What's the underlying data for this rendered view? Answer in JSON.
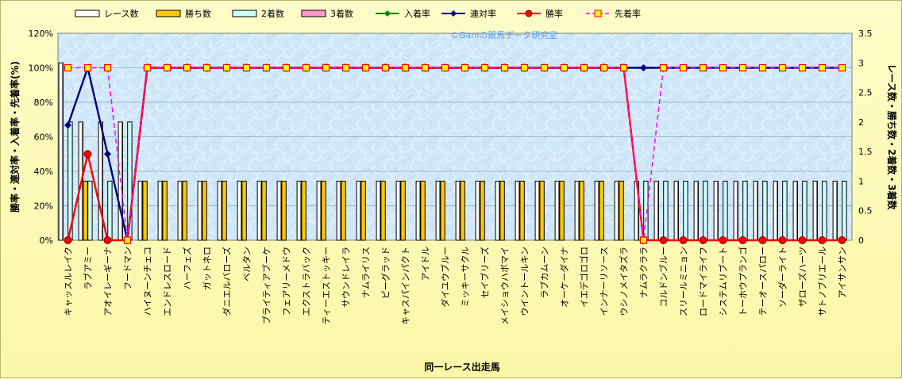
{
  "chart_data": {
    "type": "bar+line",
    "watermark": "©Ganiの競馬データ研究室",
    "xlabel": "同一レース出走馬",
    "ylabel_left": "勝率・連対率・入着率・先着率(%)",
    "ylabel_right": "レース数・勝ち数・2着数・3着数",
    "ylim_left": [
      0,
      120
    ],
    "ylim_right": [
      0,
      3.5
    ],
    "yticks_left": [
      "0%",
      "20%",
      "40%",
      "60%",
      "80%",
      "100%",
      "120%"
    ],
    "yticks_right": [
      "0",
      "0.5",
      "1",
      "1.5",
      "2",
      "2.5",
      "3",
      "3.5"
    ],
    "categories": [
      "キャッスルレイク",
      "ラブアミー",
      "アオイレーギーナ",
      "フードマン",
      "ハイヌーンチェコ",
      "エンドレスロード",
      "ハーフェズ",
      "ガットネロ",
      "ダニエルバローズ",
      "ベルタン",
      "ブライティアブーケ",
      "フェアリーメドウ",
      "エクストラバック",
      "ティーエストッキー",
      "サウンドレイラ",
      "ナムライリス",
      "ピーグラッド",
      "キャスパインパクト",
      "アイドル",
      "ダイユウブルー",
      "ミッキーサクル",
      "セイブリーズ",
      "メイショウハボマイ",
      "ウイントールキン",
      "ラブカムーン",
      "オーケーダイナ",
      "イエデゴロゴロ",
      "インナーリソース",
      "ウシノメイタズラ",
      "ナムラクララ",
      "コルドンブルー",
      "スリールミニョン",
      "ロードマイライフ",
      "システムリブート",
      "トーホウプランゴ",
      "テーオースパロー",
      "ソーダーライト",
      "ザローズハーツ",
      "サトノブリエール",
      "アイサンサン"
    ],
    "series": [
      {
        "name": "レース数",
        "values": [
          3,
          2,
          2,
          2,
          1,
          1,
          1,
          1,
          1,
          1,
          1,
          1,
          1,
          1,
          1,
          1,
          1,
          1,
          1,
          1,
          1,
          1,
          1,
          1,
          1,
          1,
          1,
          1,
          1,
          1,
          1,
          1,
          1,
          1,
          1,
          1,
          1,
          1,
          1,
          1
        ],
        "color": "#ffffff"
      },
      {
        "name": "勝ち数",
        "values": [
          0,
          1,
          0,
          0,
          1,
          1,
          1,
          1,
          1,
          1,
          1,
          1,
          1,
          1,
          1,
          1,
          1,
          1,
          1,
          1,
          1,
          1,
          1,
          1,
          1,
          1,
          1,
          1,
          1,
          0,
          0,
          0,
          0,
          0,
          0,
          0,
          0,
          0,
          0,
          0
        ],
        "color": "#ffc800"
      },
      {
        "name": "2着数",
        "values": [
          2,
          1,
          1,
          2,
          0,
          0,
          0,
          0,
          0,
          0,
          0,
          0,
          0,
          0,
          0,
          0,
          0,
          0,
          0,
          0,
          0,
          0,
          0,
          0,
          0,
          0,
          0,
          0,
          0,
          1,
          1,
          1,
          1,
          1,
          1,
          1,
          1,
          1,
          1,
          1
        ],
        "color": "#ccffff"
      },
      {
        "name": "3着数",
        "values": [
          0,
          0,
          0,
          0,
          0,
          0,
          0,
          0,
          0,
          0,
          0,
          0,
          0,
          0,
          0,
          0,
          0,
          0,
          0,
          0,
          0,
          0,
          0,
          0,
          0,
          0,
          0,
          0,
          0,
          0,
          0,
          0,
          0,
          0,
          0,
          0,
          0,
          0,
          0,
          0
        ],
        "color": "#ff99cc"
      },
      {
        "name": "入着率",
        "values": [
          66.7,
          100,
          50,
          0,
          100,
          100,
          100,
          100,
          100,
          100,
          100,
          100,
          100,
          100,
          100,
          100,
          100,
          100,
          100,
          100,
          100,
          100,
          100,
          100,
          100,
          100,
          100,
          100,
          100,
          100,
          100,
          100,
          100,
          100,
          100,
          100,
          100,
          100,
          100,
          100
        ],
        "color": "#008000"
      },
      {
        "name": "連対率",
        "values": [
          66.7,
          100,
          50,
          0,
          100,
          100,
          100,
          100,
          100,
          100,
          100,
          100,
          100,
          100,
          100,
          100,
          100,
          100,
          100,
          100,
          100,
          100,
          100,
          100,
          100,
          100,
          100,
          100,
          100,
          100,
          100,
          100,
          100,
          100,
          100,
          100,
          100,
          100,
          100,
          100
        ],
        "color": "#000080"
      },
      {
        "name": "勝率",
        "values": [
          0,
          50,
          0,
          0,
          100,
          100,
          100,
          100,
          100,
          100,
          100,
          100,
          100,
          100,
          100,
          100,
          100,
          100,
          100,
          100,
          100,
          100,
          100,
          100,
          100,
          100,
          100,
          100,
          100,
          0,
          0,
          0,
          0,
          0,
          0,
          0,
          0,
          0,
          0,
          0
        ],
        "color": "#ff0000"
      },
      {
        "name": "先着率",
        "values": [
          100,
          100,
          100,
          0,
          100,
          100,
          100,
          100,
          100,
          100,
          100,
          100,
          100,
          100,
          100,
          100,
          100,
          100,
          100,
          100,
          100,
          100,
          100,
          100,
          100,
          100,
          100,
          100,
          100,
          0,
          100,
          100,
          100,
          100,
          100,
          100,
          100,
          100,
          100,
          100
        ],
        "color": "#ff00ff"
      }
    ],
    "grid": true,
    "legend_position": "top"
  }
}
